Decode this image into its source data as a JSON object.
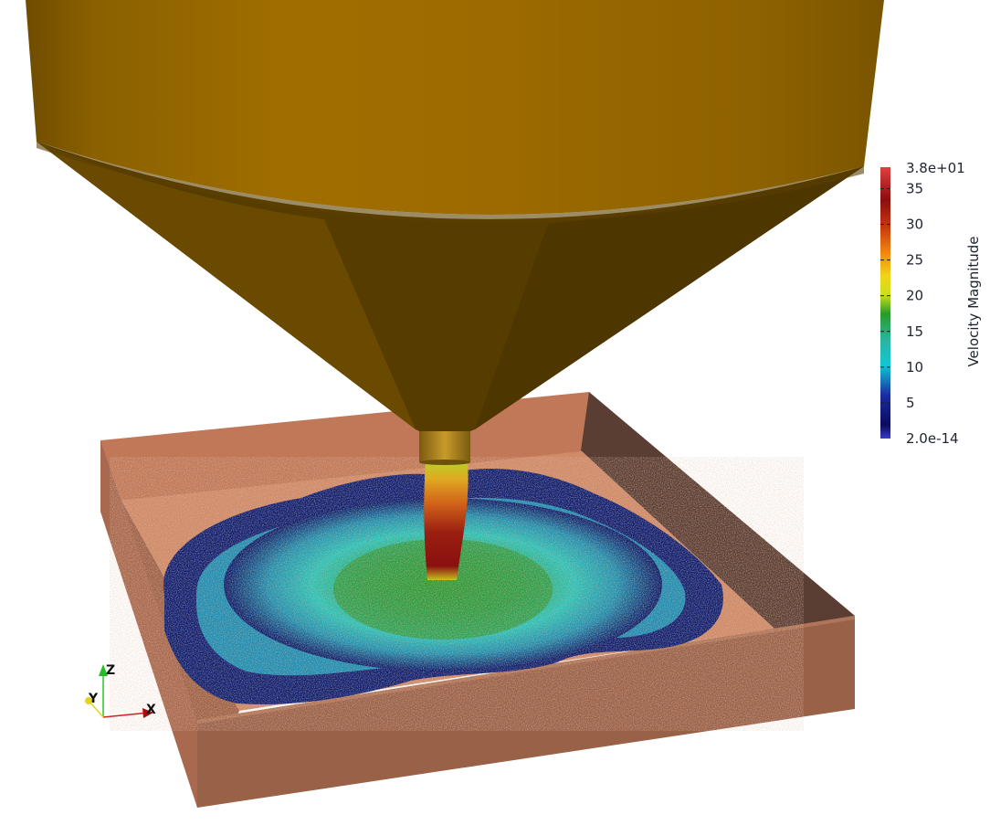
{
  "colorbar": {
    "title": "Velocity Magnitude",
    "max_label": "3.8e+01",
    "min_label": "2.0e-14",
    "tick_labels": [
      "35",
      "30",
      "25",
      "20",
      "15",
      "10",
      "5"
    ],
    "range": [
      0,
      38
    ],
    "tick_values": [
      35,
      30,
      25,
      20,
      15,
      10,
      5
    ],
    "colormap": [
      "#3b3bc7",
      "#0b0b5f",
      "#1a2ea0",
      "#12c6d6",
      "#2bb5a0",
      "#2a9a2a",
      "#cbe01a",
      "#f0d41a",
      "#f28a10",
      "#c8380e",
      "#8a0e0e",
      "#e04040"
    ]
  },
  "orientation_axes": {
    "x_label": "X",
    "y_label": "Y",
    "z_label": "Z",
    "x_color": "#d02020",
    "y_color": "#e6d21c",
    "z_color": "#28c828"
  },
  "scene": {
    "hopper_color": "#a06e00",
    "tray_color": "#c8805c",
    "background": "#ffffff"
  }
}
